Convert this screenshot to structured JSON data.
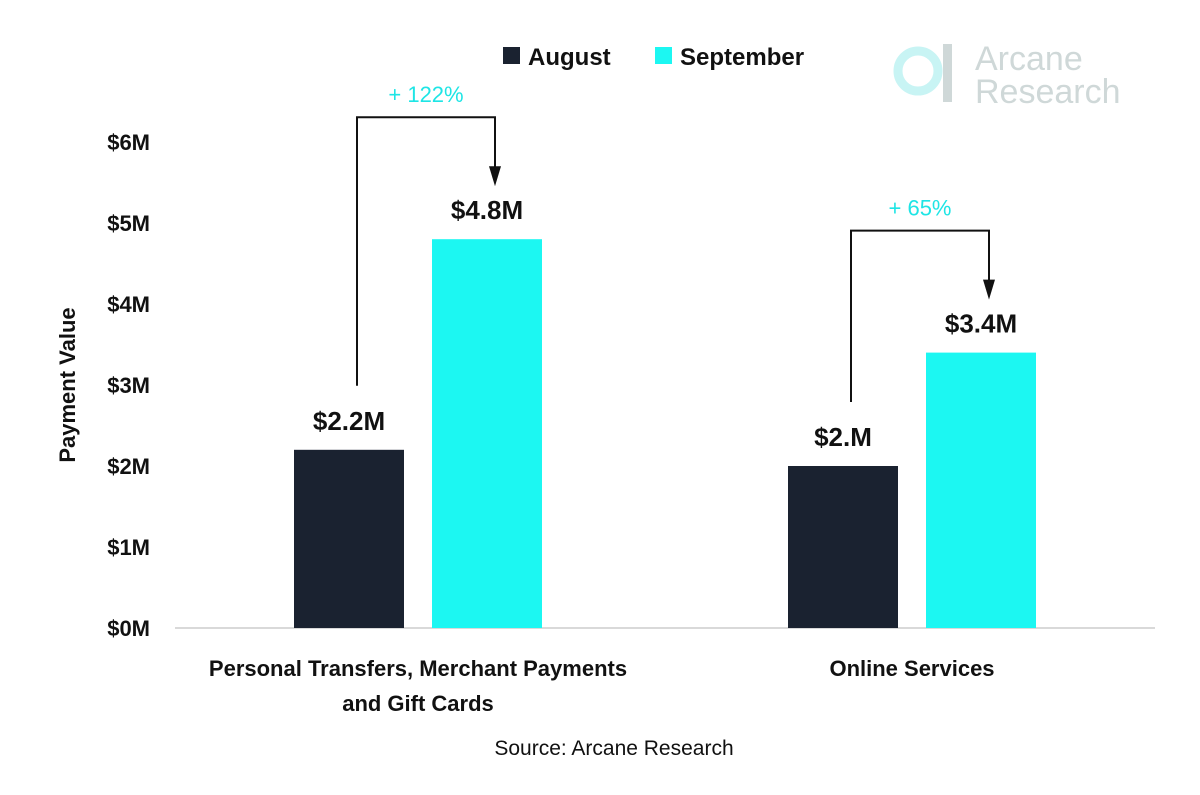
{
  "chart_data": {
    "type": "bar",
    "title": "",
    "xlabel": "",
    "ylabel": "Payment Value",
    "ylim": [
      0,
      6
    ],
    "unit": "M",
    "yticks": [
      "$0M",
      "$1M",
      "$2M",
      "$3M",
      "$4M",
      "$5M",
      "$6M"
    ],
    "ytick_values": [
      0,
      1,
      2,
      3,
      4,
      5,
      6
    ],
    "grid": false,
    "legend_position": "top-center",
    "categories": [
      [
        "Personal Transfers, Merchant Payments",
        "and Gift Cards"
      ],
      [
        "Online Services"
      ]
    ],
    "series": [
      {
        "name": "August",
        "color": "#1a2230",
        "values": [
          2.2,
          2.0
        ],
        "labels": [
          "$2.2M",
          "$2.M"
        ]
      },
      {
        "name": "September",
        "color": "#1cf7f2",
        "values": [
          4.8,
          3.4
        ],
        "labels": [
          "$4.8M",
          "$3.4M"
        ]
      }
    ],
    "annotations": [
      {
        "text": "+ 122%",
        "category_index": 0,
        "from_series": 0,
        "to_series": 1,
        "color": "#1ee5e5"
      },
      {
        "text": "+ 65%",
        "category_index": 1,
        "from_series": 0,
        "to_series": 1,
        "color": "#1ee5e5"
      }
    ],
    "source": "Source: Arcane Research",
    "logo": {
      "lines": [
        "Arcane",
        "Research"
      ],
      "color": "#cfd8d8",
      "accent": "#c8f4f4"
    }
  }
}
